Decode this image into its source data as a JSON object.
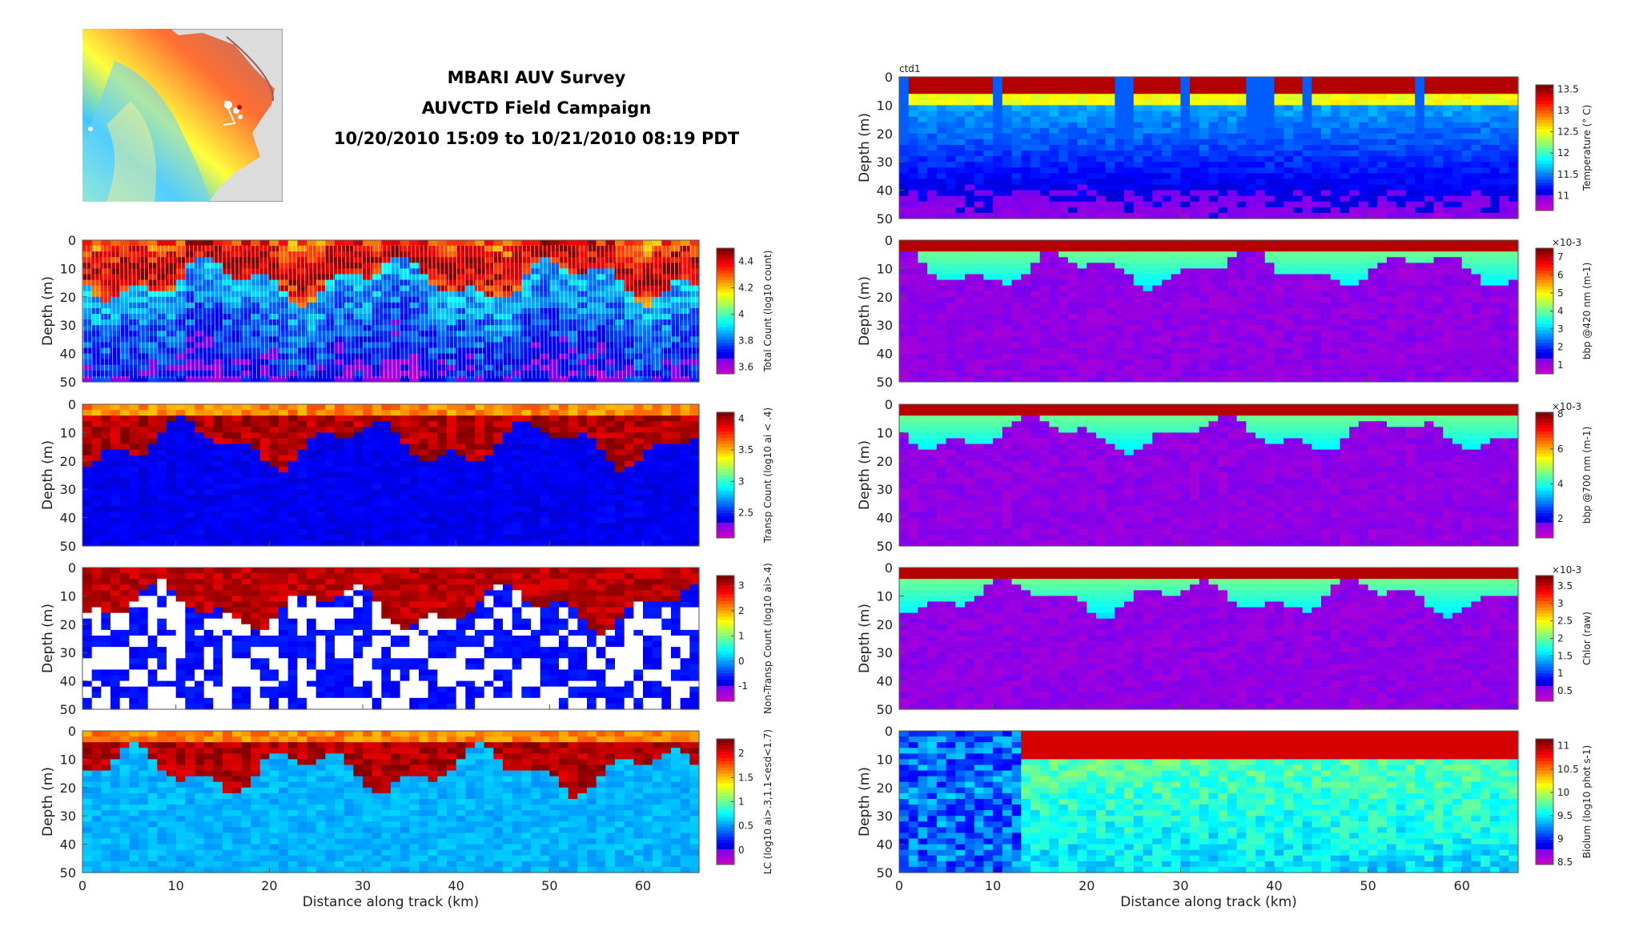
{
  "title": {
    "line1": "MBARI AUV Survey",
    "line2": "AUVCTD Field Campaign",
    "line3": "10/20/2010 15:09 to 10/21/2010 08:19 PDT"
  },
  "chart_data": [
    {
      "type": "heatmap",
      "panel": "total-count",
      "ylabel": "Depth (m)",
      "y_ticks": [
        "0",
        "10",
        "20",
        "30",
        "40",
        "50"
      ],
      "ylim": [
        50,
        0
      ],
      "xlim": [
        0,
        66
      ],
      "colorbar_label": "Total Count (log10 count)",
      "colorbar_ticks": [
        "3.6",
        "3.8",
        "4",
        "4.2",
        "4.4"
      ],
      "colorbar_range": [
        3.55,
        4.5
      ],
      "show_x_ticks": false
    },
    {
      "type": "heatmap",
      "panel": "transp-count",
      "ylabel": "Depth (m)",
      "y_ticks": [
        "0",
        "10",
        "20",
        "30",
        "40",
        "50"
      ],
      "ylim": [
        50,
        0
      ],
      "xlim": [
        0,
        66
      ],
      "colorbar_label": "Transp Count (log10 ai < .4)",
      "colorbar_ticks": [
        "2.5",
        "3",
        "3.5",
        "4"
      ],
      "colorbar_range": [
        2.1,
        4.1
      ],
      "show_x_ticks": false
    },
    {
      "type": "heatmap",
      "panel": "non-transp-count",
      "ylabel": "Depth (m)",
      "y_ticks": [
        "0",
        "10",
        "20",
        "30",
        "40",
        "50"
      ],
      "ylim": [
        50,
        0
      ],
      "xlim": [
        0,
        66
      ],
      "colorbar_label": "Non-Transp Count (log10 ai>.4)",
      "colorbar_ticks": [
        "-1",
        "0",
        "1",
        "2",
        "3"
      ],
      "colorbar_range": [
        -1.6,
        3.4
      ],
      "show_x_ticks": false
    },
    {
      "type": "heatmap",
      "panel": "lc",
      "ylabel": "Depth (m)",
      "y_ticks": [
        "0",
        "10",
        "20",
        "30",
        "40",
        "50"
      ],
      "ylim": [
        50,
        0
      ],
      "xlim": [
        0,
        66
      ],
      "colorbar_label": "LC (log10 ai>.3,1.1<esd<1.7)",
      "colorbar_ticks": [
        "0",
        "0.5",
        "1",
        "1.5",
        "2"
      ],
      "colorbar_range": [
        -0.3,
        2.3
      ],
      "show_x_ticks": true,
      "xlabel": "Distance along track (km)",
      "x_ticks": [
        "0",
        "10",
        "20",
        "30",
        "40",
        "50",
        "60"
      ]
    },
    {
      "type": "heatmap",
      "panel": "temperature",
      "label": "ctd1",
      "ylabel": "Depth (m)",
      "y_ticks": [
        "0",
        "10",
        "20",
        "30",
        "40",
        "50"
      ],
      "ylim": [
        50,
        0
      ],
      "xlim": [
        0,
        66
      ],
      "colorbar_label": "Temperature (° C)",
      "colorbar_ticks": [
        "11",
        "11.5",
        "12",
        "12.5",
        "13",
        "13.5"
      ],
      "colorbar_range": [
        10.65,
        13.6
      ],
      "show_x_ticks": false
    },
    {
      "type": "heatmap",
      "panel": "bbp420",
      "ylabel": "Depth (m)",
      "y_ticks": [
        "0",
        "10",
        "20",
        "30",
        "40",
        "50"
      ],
      "ylim": [
        50,
        0
      ],
      "xlim": [
        0,
        66
      ],
      "colorbar_label": "bbp @420 nm (m-1)",
      "colorbar_multiplier": "×10-3",
      "colorbar_ticks": [
        "1",
        "2",
        "3",
        "4",
        "5",
        "6",
        "7"
      ],
      "colorbar_range": [
        0.5,
        7.5
      ],
      "show_x_ticks": false
    },
    {
      "type": "heatmap",
      "panel": "bbp700",
      "ylabel": "Depth (m)",
      "y_ticks": [
        "0",
        "10",
        "20",
        "30",
        "40",
        "50"
      ],
      "ylim": [
        50,
        0
      ],
      "xlim": [
        0,
        66
      ],
      "colorbar_label": "bbp @700 nm (m-1)",
      "colorbar_multiplier": "×10-3",
      "colorbar_ticks": [
        "2",
        "4",
        "6",
        "8"
      ],
      "colorbar_range": [
        0.9,
        8.1
      ],
      "show_x_ticks": false
    },
    {
      "type": "heatmap",
      "panel": "chlor",
      "ylabel": "Depth (m)",
      "y_ticks": [
        "0",
        "10",
        "20",
        "30",
        "40",
        "50"
      ],
      "ylim": [
        50,
        0
      ],
      "xlim": [
        0,
        66
      ],
      "colorbar_label": "Chlor (raw)",
      "colorbar_multiplier": "×10-3",
      "colorbar_ticks": [
        "0.5",
        "1",
        "1.5",
        "2",
        "2.5",
        "3",
        "3.5"
      ],
      "colorbar_range": [
        0.2,
        3.8
      ],
      "show_x_ticks": false
    },
    {
      "type": "heatmap",
      "panel": "biolum",
      "ylabel": "Depth (m)",
      "y_ticks": [
        "0",
        "10",
        "20",
        "30",
        "40",
        "50"
      ],
      "ylim": [
        50,
        0
      ],
      "xlim": [
        0,
        66
      ],
      "colorbar_label": "Biolum (log10 phot s-1)",
      "colorbar_ticks": [
        "8.5",
        "9",
        "9.5",
        "10",
        "10.5",
        "11"
      ],
      "colorbar_range": [
        8.45,
        11.15
      ],
      "show_x_ticks": true,
      "xlabel": "Distance along track (km)",
      "x_ticks": [
        "0",
        "10",
        "20",
        "30",
        "40",
        "50",
        "60"
      ]
    }
  ]
}
